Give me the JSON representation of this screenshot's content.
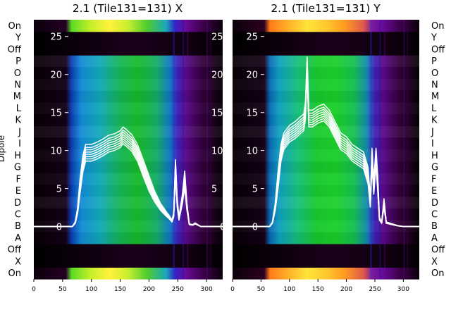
{
  "colors": {
    "background": "#ffffff",
    "trace": "#ffffff",
    "text": "#000000",
    "colormap": "gnuplot2-like (black-purple-blue-green-yellow)"
  },
  "chart_data": [
    {
      "type": "heatmap",
      "title": "2.1 (Tile131=131) X",
      "ylabel": "Dipole",
      "y_categories": [
        "On",
        "X",
        "Off",
        "A",
        "B",
        "C",
        "D",
        "E",
        "F",
        "G",
        "H",
        "I",
        "J",
        "K",
        "L",
        "M",
        "N",
        "O",
        "P",
        "Off",
        "Y",
        "On"
      ],
      "x_ticks": [
        0,
        50,
        100,
        150,
        200,
        250,
        300
      ],
      "xlim": [
        0,
        328
      ],
      "overlay_ticks": [
        0,
        5,
        10,
        15,
        20,
        25
      ],
      "overlay_ylim": [
        -6.9,
        27.2
      ],
      "overlay_series": [
        {
          "x": [
            0,
            60,
            67,
            72,
            76,
            80,
            85,
            90,
            100,
            110,
            120,
            130,
            140,
            150,
            155,
            160,
            170,
            180,
            190,
            200,
            210,
            220,
            230,
            235,
            240,
            243,
            246,
            249,
            252,
            258,
            262,
            266,
            270,
            276,
            280,
            285,
            290,
            300,
            310,
            328
          ],
          "y": [
            0,
            0,
            0,
            0.5,
            2.0,
            5.0,
            8.0,
            9.5,
            9.5,
            9.8,
            10.2,
            10.7,
            10.9,
            11.3,
            11.8,
            11.5,
            10.8,
            9.5,
            7.5,
            5.5,
            3.8,
            2.5,
            1.6,
            1.2,
            0.7,
            1.5,
            7.5,
            3.0,
            1.0,
            3.5,
            6.0,
            2.5,
            0.3,
            0.2,
            0.4,
            0.2,
            0,
            0,
            0,
            0
          ]
        }
      ]
    },
    {
      "type": "heatmap",
      "title": "2.1 (Tile131=131) Y",
      "y_categories": [
        "On",
        "X",
        "Off",
        "A",
        "B",
        "C",
        "D",
        "E",
        "F",
        "G",
        "H",
        "I",
        "J",
        "K",
        "L",
        "M",
        "N",
        "O",
        "P",
        "Off",
        "Y",
        "On"
      ],
      "x_ticks": [
        0,
        50,
        100,
        150,
        200,
        250,
        300
      ],
      "xlim": [
        0,
        328
      ],
      "overlay_ticks": [
        0,
        5,
        10,
        15,
        20,
        25
      ],
      "overlay_ylim": [
        -6.9,
        27.2
      ],
      "overlay_series": [
        {
          "x": [
            0,
            60,
            65,
            70,
            75,
            80,
            85,
            90,
            100,
            110,
            120,
            125,
            128,
            131,
            134,
            140,
            150,
            160,
            170,
            180,
            190,
            200,
            210,
            220,
            230,
            238,
            242,
            245,
            248,
            252,
            255,
            258,
            262,
            266,
            270,
            280,
            290,
            300,
            328
          ],
          "y": [
            0,
            0,
            0,
            0.5,
            2.5,
            6.0,
            9.5,
            11.0,
            12.0,
            12.5,
            13.2,
            13.5,
            15.0,
            21.0,
            14.0,
            14.0,
            14.5,
            14.8,
            14.0,
            12.5,
            11.0,
            10.5,
            9.5,
            9.0,
            8.5,
            6.5,
            3.0,
            9.0,
            5.0,
            9.0,
            5.5,
            1.0,
            0.5,
            3.0,
            0.5,
            0.3,
            0.1,
            0,
            0
          ]
        }
      ]
    }
  ]
}
